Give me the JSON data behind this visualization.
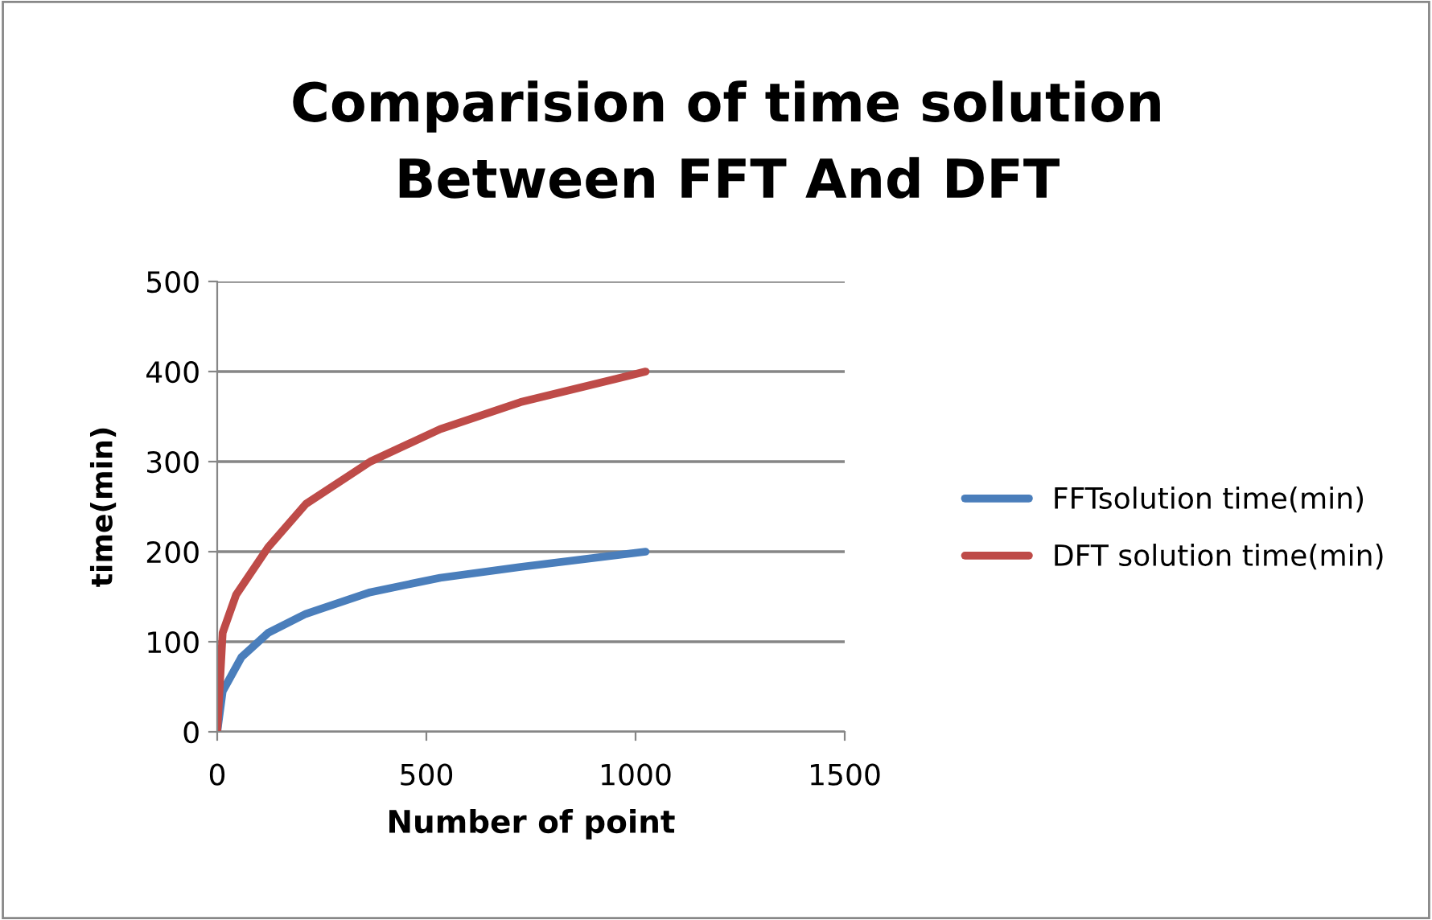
{
  "chart_data": {
    "type": "line",
    "title": "Comparision of time solution\nBetween FFT And DFT",
    "xlabel": "Number of point",
    "ylabel": "time(min)",
    "xlim": [
      0,
      1500
    ],
    "xticks": [
      0,
      500,
      1000,
      1500
    ],
    "ylim": [
      0,
      500
    ],
    "yticks": [
      0,
      100,
      200,
      300,
      400,
      500
    ],
    "grid": "y",
    "legend": "right",
    "marker": "none",
    "line_style": "solid",
    "series": [
      {
        "name": "FFTsolution time(min)",
        "color": "#4a7ebb",
        "x": [
          0,
          13,
          58,
          122,
          212,
          366,
          533,
          725,
          1024
        ],
        "values": [
          0,
          45,
          83,
          110,
          131,
          155,
          171,
          183,
          200
        ]
      },
      {
        "name": "DFT solution time(min)",
        "color": "#be4b48",
        "x": [
          0,
          13,
          45,
          122,
          212,
          366,
          533,
          725,
          1024
        ],
        "values": [
          0,
          110,
          152,
          205,
          253,
          300,
          336,
          366,
          400
        ]
      }
    ]
  }
}
